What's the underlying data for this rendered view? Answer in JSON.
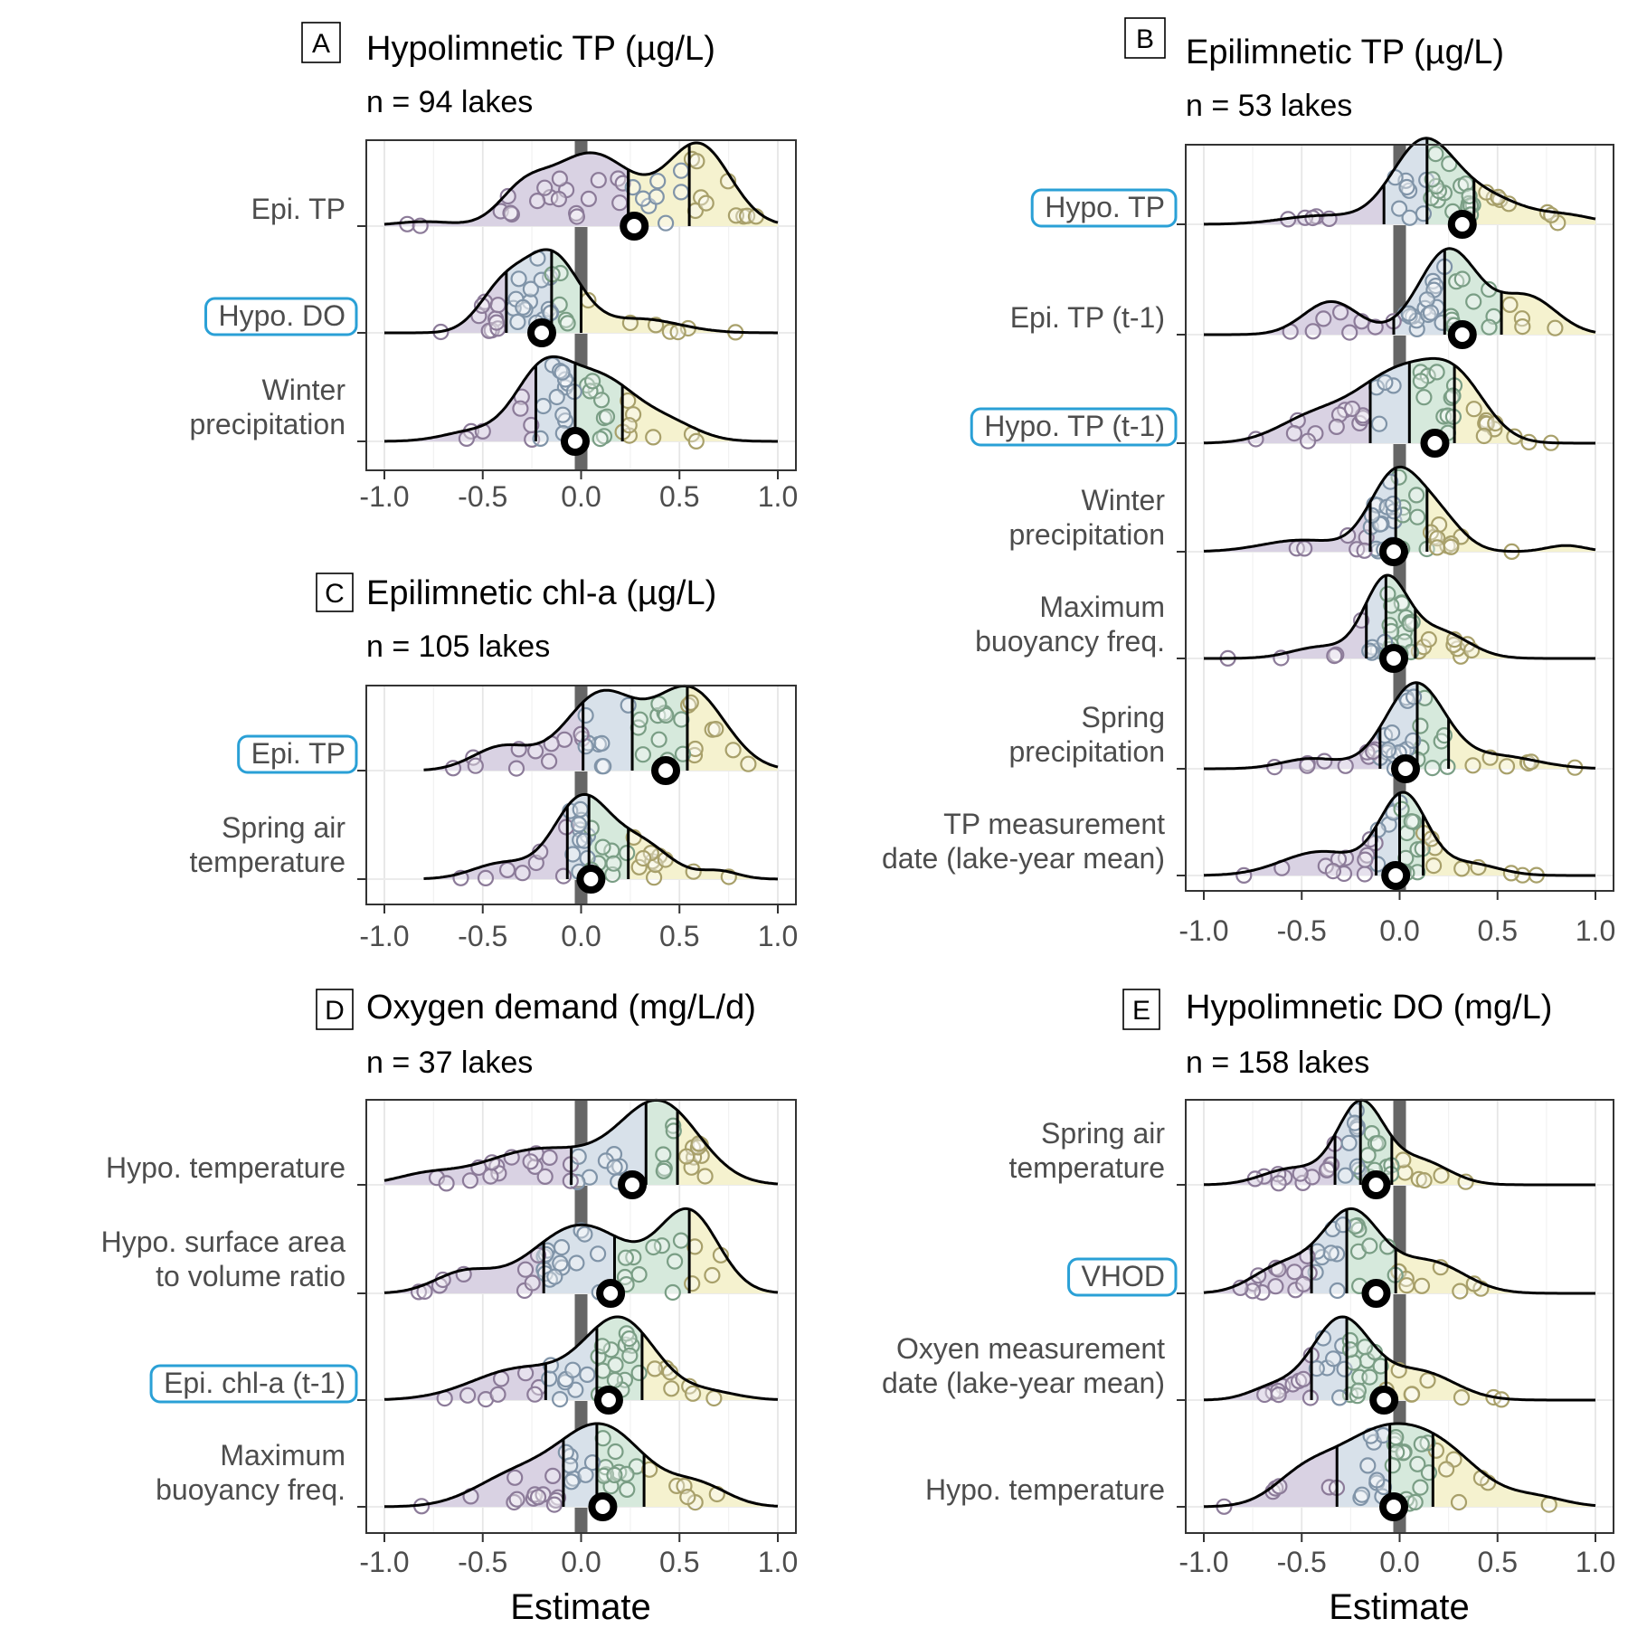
{
  "x_axis_label": "Estimate",
  "x_ticks": [
    "-1.0",
    "-0.5",
    "0.0",
    "0.5",
    "1.0"
  ],
  "colors": {
    "q1_fill": "#d9d2e3",
    "q2_fill": "#d8e1ea",
    "q3_fill": "#d6e9dc",
    "q4_fill": "#f5f2cf",
    "q1_point": "#8c7b99",
    "q2_point": "#8094a8",
    "q3_point": "#7a9e85",
    "q4_point": "#a8a06a",
    "highlight_box": "#2aa0d6",
    "zero_line": "#666666"
  },
  "chart_data": [
    {
      "panel": "A",
      "type": "ridgeline",
      "title": "Hypolimnetic TP (µg/L)",
      "subtitle": "n = 94 lakes",
      "xlim": [
        -1.0,
        1.0
      ],
      "rows": [
        {
          "label": "Epi. TP",
          "highlight": false,
          "estimate": 0.27,
          "quartiles": [
            0.24,
            0.55,
            0.24
          ],
          "start": -1.0,
          "end": 1.0,
          "peaks": [
            [
              -0.8,
              0.05,
              0.15
            ],
            [
              0.05,
              0.82,
              0.22
            ],
            [
              0.6,
              0.9,
              0.16
            ],
            [
              -0.3,
              0.3,
              0.12
            ]
          ]
        },
        {
          "label": "Hypo. DO",
          "highlight": true,
          "estimate": -0.2,
          "quartiles": [
            -0.38,
            -0.15,
            0.0
          ],
          "start": -1.0,
          "end": 1.0,
          "peaks": [
            [
              -0.15,
              1.0,
              0.14
            ],
            [
              -0.4,
              0.55,
              0.12
            ],
            [
              0.3,
              0.18,
              0.2
            ]
          ]
        },
        {
          "label": "Winter\nprecipitation",
          "highlight": false,
          "estimate": -0.03,
          "quartiles": [
            -0.23,
            -0.03,
            0.21
          ],
          "start": -1.0,
          "end": 1.0,
          "peaks": [
            [
              -0.2,
              0.8,
              0.14
            ],
            [
              0.1,
              0.75,
              0.18
            ],
            [
              0.45,
              0.2,
              0.15
            ],
            [
              -0.55,
              0.12,
              0.15
            ]
          ]
        }
      ]
    },
    {
      "panel": "B",
      "type": "ridgeline",
      "title": "Epilimnetic TP (µg/L)",
      "subtitle": "n = 53 lakes",
      "xlim": [
        -1.0,
        1.0
      ],
      "rows": [
        {
          "label": "Hypo. TP",
          "highlight": true,
          "estimate": 0.32,
          "quartiles": [
            -0.08,
            0.14,
            0.38
          ],
          "start": -1.0,
          "end": 1.0,
          "peaks": [
            [
              0.12,
              0.95,
              0.16
            ],
            [
              0.45,
              0.3,
              0.18
            ],
            [
              -0.4,
              0.1,
              0.2
            ],
            [
              0.85,
              0.1,
              0.15
            ]
          ]
        },
        {
          "label": "Epi. TP (t-1)",
          "highlight": false,
          "estimate": 0.32,
          "quartiles": [
            -0.03,
            0.23,
            0.52
          ],
          "start": -1.0,
          "end": 1.0,
          "peaks": [
            [
              0.25,
              0.9,
              0.15
            ],
            [
              -0.35,
              0.35,
              0.14
            ],
            [
              0.65,
              0.4,
              0.15
            ]
          ]
        },
        {
          "label": "Hypo. TP (t-1)",
          "highlight": true,
          "estimate": 0.18,
          "quartiles": [
            -0.15,
            0.05,
            0.28
          ],
          "start": -1.0,
          "end": 1.0,
          "peaks": [
            [
              0.0,
              0.75,
              0.22
            ],
            [
              0.3,
              0.5,
              0.15
            ],
            [
              -0.45,
              0.25,
              0.18
            ]
          ]
        },
        {
          "label": "Winter\nprecipitation",
          "highlight": false,
          "estimate": -0.03,
          "quartiles": [
            -0.15,
            -0.02,
            0.14
          ],
          "start": -1.0,
          "end": 1.0,
          "peaks": [
            [
              -0.02,
              1.0,
              0.13
            ],
            [
              0.2,
              0.4,
              0.12
            ],
            [
              -0.5,
              0.15,
              0.2
            ],
            [
              0.85,
              0.08,
              0.1
            ]
          ]
        },
        {
          "label": "Maximum\nbuoyancy freq.",
          "highlight": false,
          "estimate": -0.03,
          "quartiles": [
            -0.17,
            -0.07,
            0.08
          ],
          "start": -1.0,
          "end": 1.0,
          "peaks": [
            [
              -0.07,
              1.0,
              0.11
            ],
            [
              0.2,
              0.35,
              0.15
            ],
            [
              -0.4,
              0.15,
              0.15
            ]
          ]
        },
        {
          "label": "Spring\nprecipitation",
          "highlight": false,
          "estimate": 0.03,
          "quartiles": [
            -0.1,
            0.09,
            0.25
          ],
          "start": -1.0,
          "end": 1.0,
          "peaks": [
            [
              0.08,
              1.0,
              0.15
            ],
            [
              0.5,
              0.15,
              0.2
            ],
            [
              -0.45,
              0.12,
              0.15
            ]
          ]
        },
        {
          "label": "TP measurement\ndate (lake-year mean)",
          "highlight": false,
          "estimate": -0.02,
          "quartiles": [
            -0.12,
            0.0,
            0.12
          ],
          "start": -1.0,
          "end": 1.0,
          "peaks": [
            [
              0.02,
              1.0,
              0.12
            ],
            [
              -0.4,
              0.3,
              0.2
            ],
            [
              0.35,
              0.15,
              0.15
            ]
          ]
        }
      ]
    },
    {
      "panel": "C",
      "type": "ridgeline",
      "title": "Epilimnetic chl-a (µg/L)",
      "subtitle": "n = 105 lakes",
      "xlim": [
        -1.0,
        1.0
      ],
      "rows": [
        {
          "label": "Epi. TP",
          "highlight": true,
          "estimate": 0.43,
          "quartiles": [
            0.01,
            0.26,
            0.54
          ],
          "start": -0.8,
          "end": 1.0,
          "peaks": [
            [
              0.1,
              0.8,
              0.18
            ],
            [
              0.55,
              0.85,
              0.18
            ],
            [
              -0.4,
              0.25,
              0.15
            ]
          ]
        },
        {
          "label": "Spring air\ntemperature",
          "highlight": false,
          "estimate": 0.05,
          "quartiles": [
            -0.07,
            0.04,
            0.24
          ],
          "start": -0.8,
          "end": 1.0,
          "peaks": [
            [
              0.0,
              1.0,
              0.14
            ],
            [
              0.3,
              0.45,
              0.15
            ],
            [
              -0.4,
              0.2,
              0.15
            ],
            [
              0.7,
              0.1,
              0.1
            ]
          ]
        }
      ]
    },
    {
      "panel": "D",
      "type": "ridgeline",
      "title": "Oxygen demand (mg/L/d)",
      "subtitle": "n = 37 lakes",
      "xlim": [
        -1.0,
        1.0
      ],
      "rows": [
        {
          "label": "Hypo. temperature",
          "highlight": false,
          "estimate": 0.26,
          "quartiles": [
            -0.05,
            0.33,
            0.49
          ],
          "start": -1.0,
          "end": 1.0,
          "peaks": [
            [
              0.4,
              1.0,
              0.2
            ],
            [
              -0.2,
              0.45,
              0.3
            ],
            [
              -0.8,
              0.1,
              0.15
            ]
          ]
        },
        {
          "label": "Hypo. surface area\nto volume ratio",
          "highlight": false,
          "estimate": 0.15,
          "quartiles": [
            -0.19,
            0.17,
            0.55
          ],
          "start": -1.0,
          "end": 1.0,
          "peaks": [
            [
              0.0,
              0.7,
              0.25
            ],
            [
              0.55,
              0.8,
              0.15
            ],
            [
              -0.6,
              0.2,
              0.15
            ]
          ]
        },
        {
          "label": "Epi. chl-a (t-1)",
          "highlight": true,
          "estimate": 0.14,
          "quartiles": [
            -0.18,
            0.08,
            0.31
          ],
          "start": -1.0,
          "end": 1.0,
          "peaks": [
            [
              0.2,
              1.0,
              0.18
            ],
            [
              -0.3,
              0.4,
              0.25
            ],
            [
              0.65,
              0.1,
              0.15
            ]
          ]
        },
        {
          "label": "Maximum\nbuoyancy freq.",
          "highlight": false,
          "estimate": 0.11,
          "quartiles": [
            -0.09,
            0.08,
            0.32
          ],
          "start": -1.0,
          "end": 1.0,
          "peaks": [
            [
              0.1,
              1.0,
              0.22
            ],
            [
              -0.35,
              0.35,
              0.2
            ],
            [
              0.6,
              0.25,
              0.15
            ]
          ]
        }
      ]
    },
    {
      "panel": "E",
      "type": "ridgeline",
      "title": "Hypolimnetic DO (mg/L)",
      "subtitle": "n = 158 lakes",
      "xlim": [
        -1.0,
        1.0
      ],
      "rows": [
        {
          "label": "Spring air\ntemperature",
          "highlight": false,
          "estimate": -0.12,
          "quartiles": [
            -0.33,
            -0.2,
            -0.04
          ],
          "start": -1.0,
          "end": 1.0,
          "peaks": [
            [
              -0.2,
              1.0,
              0.12
            ],
            [
              0.1,
              0.3,
              0.15
            ],
            [
              -0.55,
              0.2,
              0.15
            ]
          ]
        },
        {
          "label": "VHOD",
          "highlight": true,
          "estimate": -0.12,
          "quartiles": [
            -0.45,
            -0.27,
            -0.02
          ],
          "start": -1.0,
          "end": 1.0,
          "peaks": [
            [
              -0.25,
              0.9,
              0.15
            ],
            [
              0.15,
              0.35,
              0.18
            ],
            [
              -0.6,
              0.3,
              0.15
            ]
          ]
        },
        {
          "label": "Oxyen measurement\ndate (lake-year mean)",
          "highlight": false,
          "estimate": -0.08,
          "quartiles": [
            -0.45,
            -0.27,
            -0.07
          ],
          "start": -1.0,
          "end": 1.0,
          "peaks": [
            [
              -0.3,
              1.0,
              0.15
            ],
            [
              0.1,
              0.35,
              0.18
            ],
            [
              -0.65,
              0.15,
              0.12
            ]
          ]
        },
        {
          "label": "Hypo. temperature",
          "highlight": false,
          "estimate": -0.03,
          "quartiles": [
            -0.32,
            -0.05,
            0.17
          ],
          "start": -1.0,
          "end": 1.0,
          "peaks": [
            [
              -0.1,
              0.8,
              0.25
            ],
            [
              0.25,
              0.4,
              0.2
            ],
            [
              -0.5,
              0.25,
              0.15
            ],
            [
              0.7,
              0.1,
              0.15
            ]
          ]
        }
      ]
    }
  ]
}
